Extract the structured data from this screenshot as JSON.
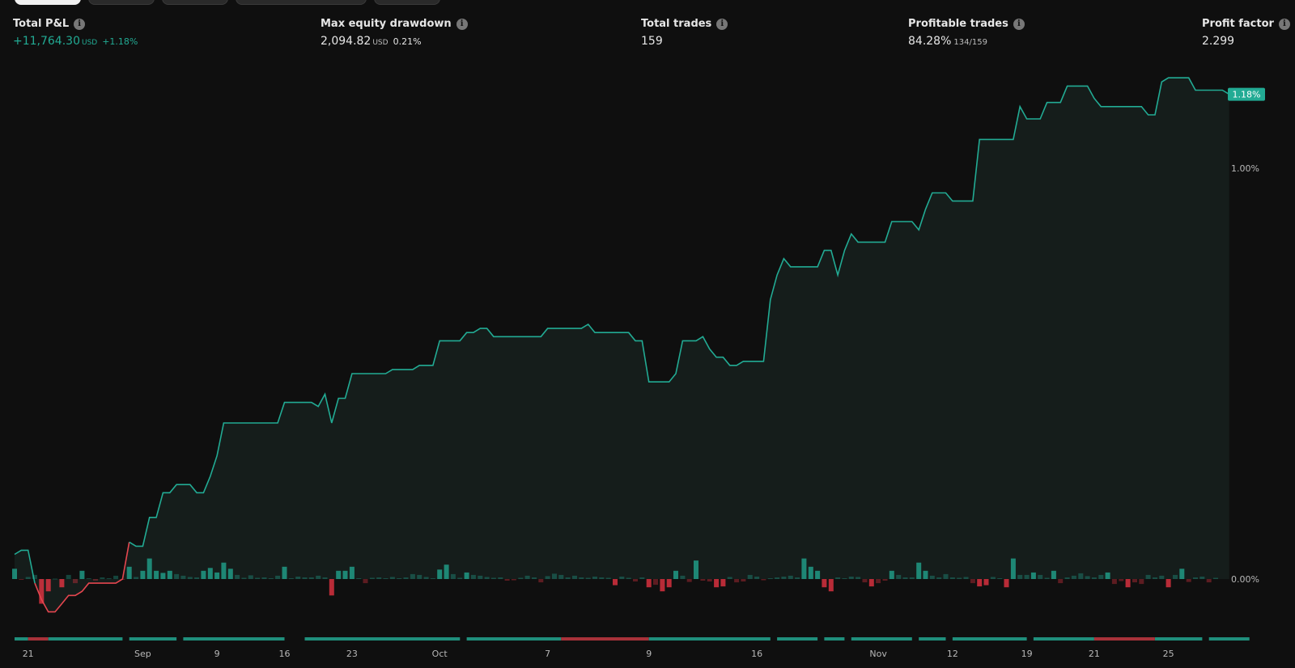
{
  "metrics": [
    {
      "label": "Total P&L",
      "value": "+11,764.30",
      "unit": "USD",
      "pct": "+1.18%",
      "positive": true
    },
    {
      "label": "Max equity drawdown",
      "value": "2,094.82",
      "unit": "USD",
      "pct": "0.21%"
    },
    {
      "label": "Total trades",
      "value": "159"
    },
    {
      "label": "Profitable trades",
      "value": "84.28%",
      "sub": "134/159"
    },
    {
      "label": "Profit factor",
      "value": "2.299"
    }
  ],
  "colors": {
    "background": "#0f0f0f",
    "positive": "#22ab94",
    "negative": "#f23645",
    "neg_line": "#e5464f",
    "text": "#d9d9d9"
  },
  "icons": {
    "info": "info-circle-icon"
  },
  "chart_data": {
    "type": "line",
    "title": "",
    "xlabel": "",
    "ylabel": "",
    "y_unit": "%",
    "ylim": [
      -0.26,
      1.27
    ],
    "y_ticks": [
      {
        "value": 0.0,
        "label": "0.00%"
      },
      {
        "value": 1.0,
        "label": "1.00%"
      }
    ],
    "last_value_label": "1.18%",
    "last_value": 1.18,
    "x_ticks": [
      "21",
      "Sep",
      "9",
      "16",
      "23",
      "Oct",
      "7",
      "9",
      "16",
      "Nov",
      "12",
      "19",
      "21",
      "25"
    ],
    "x_tick_index": [
      2,
      19,
      30,
      40,
      50,
      63,
      79,
      94,
      110,
      128,
      139,
      150,
      160,
      171
    ],
    "x_count": 179,
    "series": [
      {
        "kind": "equity_line",
        "values": [
          0.06,
          0.07,
          0.07,
          -0.01,
          -0.05,
          -0.08,
          -0.08,
          -0.06,
          -0.04,
          -0.04,
          -0.03,
          -0.01,
          -0.01,
          -0.01,
          -0.01,
          -0.01,
          0.0,
          0.09,
          0.08,
          0.08,
          0.15,
          0.15,
          0.21,
          0.21,
          0.23,
          0.23,
          0.23,
          0.21,
          0.21,
          0.25,
          0.3,
          0.38,
          0.38,
          0.38,
          0.38,
          0.38,
          0.38,
          0.38,
          0.38,
          0.38,
          0.43,
          0.43,
          0.43,
          0.43,
          0.43,
          0.42,
          0.45,
          0.38,
          0.44,
          0.44,
          0.5,
          0.5,
          0.5,
          0.5,
          0.5,
          0.5,
          0.51,
          0.51,
          0.51,
          0.51,
          0.52,
          0.52,
          0.52,
          0.58,
          0.58,
          0.58,
          0.58,
          0.6,
          0.6,
          0.61,
          0.61,
          0.59,
          0.59,
          0.59,
          0.59,
          0.59,
          0.59,
          0.59,
          0.59,
          0.61,
          0.61,
          0.61,
          0.61,
          0.61,
          0.61,
          0.62,
          0.6,
          0.6,
          0.6,
          0.6,
          0.6,
          0.6,
          0.58,
          0.58,
          0.48,
          0.48,
          0.48,
          0.48,
          0.5,
          0.58,
          0.58,
          0.58,
          0.59,
          0.56,
          0.54,
          0.54,
          0.52,
          0.52,
          0.53,
          0.53,
          0.53,
          0.53,
          0.68,
          0.74,
          0.78,
          0.76,
          0.76,
          0.76,
          0.76,
          0.76,
          0.8,
          0.8,
          0.74,
          0.8,
          0.84,
          0.82,
          0.82,
          0.82,
          0.82,
          0.82,
          0.87,
          0.87,
          0.87,
          0.87,
          0.85,
          0.9,
          0.94,
          0.94,
          0.94,
          0.92,
          0.92,
          0.92,
          0.92,
          1.07,
          1.07,
          1.07,
          1.07,
          1.07,
          1.07,
          1.15,
          1.12,
          1.12,
          1.12,
          1.16,
          1.16,
          1.16,
          1.2,
          1.2,
          1.2,
          1.2,
          1.17,
          1.15,
          1.15,
          1.15,
          1.15,
          1.15,
          1.15,
          1.15,
          1.13,
          1.13,
          1.21,
          1.22,
          1.22,
          1.22,
          1.22,
          1.19,
          1.19,
          1.19,
          1.19,
          1.19,
          1.18
        ]
      },
      {
        "kind": "trade_bars",
        "values": [
          0.025,
          -0.002,
          0.005,
          0.01,
          -0.06,
          -0.03,
          0.001,
          -0.02,
          0.01,
          -0.01,
          0.02,
          0.002,
          -0.004,
          0.004,
          0.002,
          0.008,
          -0.002,
          0.03,
          0.005,
          0.02,
          0.05,
          0.02,
          0.015,
          0.02,
          0.012,
          0.008,
          0.005,
          0.004,
          0.02,
          0.027,
          0.016,
          0.04,
          0.025,
          0.01,
          0.003,
          0.009,
          0.003,
          0.004,
          0.002,
          0.008,
          0.03,
          0.002,
          0.006,
          0.004,
          0.004,
          0.008,
          0.004,
          -0.04,
          0.02,
          0.02,
          0.03,
          0.002,
          -0.01,
          0.003,
          0.004,
          0.002,
          0.005,
          0.002,
          0.004,
          0.012,
          0.01,
          0.005,
          0.002,
          0.023,
          0.035,
          0.012,
          0.003,
          0.016,
          0.01,
          0.008,
          0.005,
          0.003,
          0.004,
          -0.004,
          -0.003,
          0.003,
          0.008,
          0.004,
          -0.008,
          0.007,
          0.013,
          0.01,
          0.004,
          0.008,
          0.004,
          0.003,
          0.006,
          0.004,
          0.003,
          -0.015,
          0.006,
          0.003,
          -0.006,
          0.004,
          -0.02,
          -0.014,
          -0.03,
          -0.02,
          0.02,
          0.008,
          -0.007,
          0.045,
          -0.004,
          -0.006,
          -0.02,
          -0.018,
          0.005,
          -0.008,
          -0.006,
          0.01,
          0.006,
          -0.003,
          0.002,
          0.004,
          0.006,
          0.008,
          0.004,
          0.05,
          0.03,
          0.02,
          -0.02,
          -0.03,
          0.004,
          0.002,
          0.006,
          0.005,
          -0.008,
          -0.018,
          -0.01,
          -0.004,
          0.02,
          0.01,
          0.004,
          0.004,
          0.04,
          0.02,
          0.008,
          0.004,
          0.012,
          0.004,
          0.003,
          0.005,
          -0.01,
          -0.018,
          -0.015,
          0.005,
          0.002,
          -0.02,
          0.05,
          0.01,
          0.01,
          0.016,
          0.01,
          0.003,
          0.02,
          -0.01,
          0.004,
          0.008,
          0.014,
          0.007,
          0.004,
          0.01,
          0.016,
          -0.012,
          -0.005,
          -0.02,
          -0.008,
          -0.012,
          0.01,
          0.004,
          0.008,
          -0.02,
          0.01,
          0.025,
          -0.007,
          0.004,
          0.006,
          -0.008,
          0.003
        ]
      }
    ],
    "period_strip": [
      {
        "from": 0,
        "to": 2,
        "sign": 1
      },
      {
        "from": 2,
        "to": 5,
        "sign": -1
      },
      {
        "from": 5,
        "to": 16,
        "sign": 1
      },
      {
        "from": 17,
        "to": 24,
        "sign": 1
      },
      {
        "from": 25,
        "to": 40,
        "sign": 1
      },
      {
        "from": 43,
        "to": 66,
        "sign": 1
      },
      {
        "from": 67,
        "to": 81,
        "sign": 1
      },
      {
        "from": 81,
        "to": 94,
        "sign": -1
      },
      {
        "from": 94,
        "to": 112,
        "sign": 1
      },
      {
        "from": 113,
        "to": 119,
        "sign": 1
      },
      {
        "from": 120,
        "to": 123,
        "sign": 1
      },
      {
        "from": 124,
        "to": 133,
        "sign": 1
      },
      {
        "from": 134,
        "to": 138,
        "sign": 1
      },
      {
        "from": 139,
        "to": 150,
        "sign": 1
      },
      {
        "from": 151,
        "to": 160,
        "sign": 1
      },
      {
        "from": 160,
        "to": 169,
        "sign": -1
      },
      {
        "from": 169,
        "to": 176,
        "sign": 1
      },
      {
        "from": 177,
        "to": 183,
        "sign": 1
      }
    ]
  }
}
